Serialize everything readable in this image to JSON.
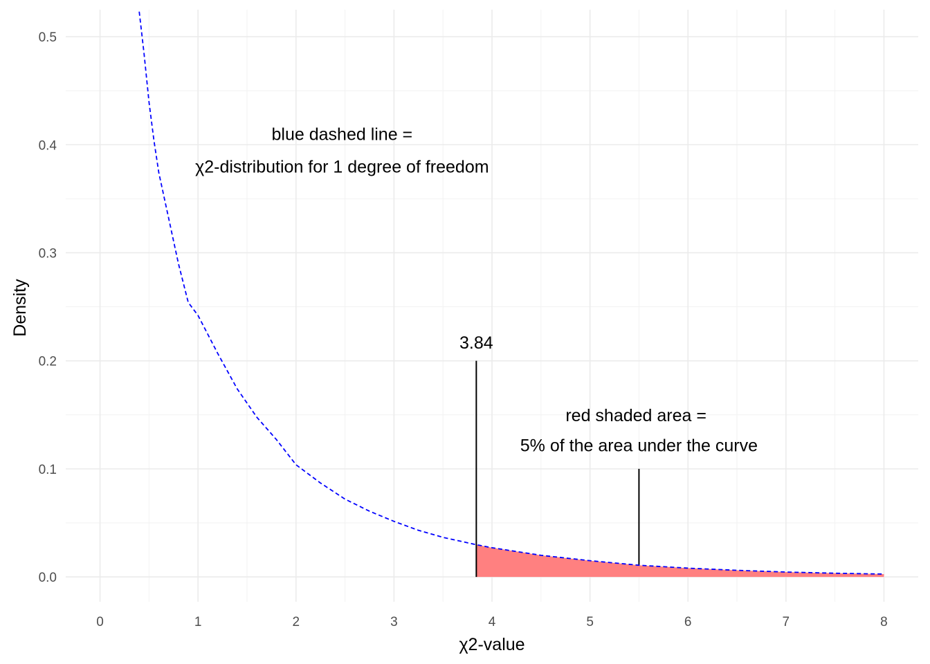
{
  "chart_data": {
    "type": "area",
    "xlabel": "χ2-value",
    "ylabel": "Density",
    "xlim": [
      -0.35,
      8.35
    ],
    "ylim": [
      -0.023,
      0.525
    ],
    "x_ticks": [
      0,
      1,
      2,
      3,
      4,
      5,
      6,
      7,
      8
    ],
    "x_tick_labels": [
      "0",
      "1",
      "2",
      "3",
      "4",
      "5",
      "6",
      "7",
      "8"
    ],
    "y_ticks": [
      0.0,
      0.1,
      0.2,
      0.3,
      0.4,
      0.5
    ],
    "y_tick_labels": [
      "0.0",
      "0.1",
      "0.2",
      "0.3",
      "0.4",
      "0.5"
    ],
    "grid": true,
    "curve": {
      "distribution": "chi-squared",
      "degrees_of_freedom": 1,
      "color": "#0000ff",
      "dash": "dashed",
      "x": [
        0.4,
        0.45,
        0.5,
        0.55,
        0.6,
        0.7,
        0.8,
        0.9,
        1.0,
        1.2,
        1.4,
        1.6,
        1.8,
        2.0,
        2.25,
        2.5,
        2.75,
        3.0,
        3.25,
        3.5,
        3.84,
        4.0,
        4.5,
        5.0,
        5.5,
        6.0,
        6.5,
        7.0,
        7.5,
        8.0
      ],
      "y": [
        0.5232,
        0.4837,
        0.4394,
        0.404,
        0.374,
        0.3321,
        0.29,
        0.2541,
        0.242,
        0.207,
        0.174,
        0.1478,
        0.1271,
        0.1038,
        0.0869,
        0.072,
        0.0608,
        0.0514,
        0.0431,
        0.0366,
        0.0298,
        0.027,
        0.02,
        0.015,
        0.0108,
        0.0081,
        0.0061,
        0.0045,
        0.0034,
        0.0026
      ]
    },
    "shaded_area": {
      "from": 3.84,
      "to": 8,
      "color": "#ff8080",
      "x": [
        3.84,
        4.0,
        4.5,
        5.0,
        5.5,
        6.0,
        6.5,
        7.0,
        7.5,
        8.0
      ],
      "y": [
        0.0298,
        0.027,
        0.02,
        0.015,
        0.0108,
        0.0081,
        0.0061,
        0.0045,
        0.0034,
        0.0026
      ]
    },
    "segments": [
      {
        "x": 3.84,
        "y_from": 0,
        "y_to": 0.2
      },
      {
        "x": 5.5,
        "y_from": 0.0108,
        "y_to": 0.1
      }
    ],
    "annotations": [
      {
        "text": "3.84",
        "x": 3.84,
        "y": 0.217
      },
      {
        "text": "blue dashed line =",
        "x": 2.47,
        "y": 0.41
      },
      {
        "text": "χ2-distribution for 1 degree of freedom",
        "x": 2.47,
        "y": 0.38
      },
      {
        "text": "red shaded area =",
        "x": 5.47,
        "y": 0.15
      },
      {
        "text": "5% of the area under the curve",
        "x": 5.5,
        "y": 0.122
      }
    ]
  }
}
